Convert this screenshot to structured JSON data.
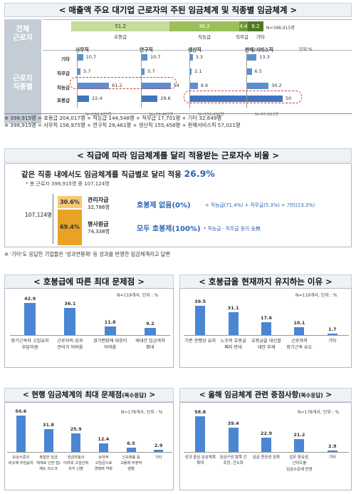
{
  "title1": "< 매출액 주요 대기업 근로자의 주된 임금체계 및 직종별 임금체계 >",
  "total_label": "전체\n근로자",
  "total_bar": {
    "segments": [
      {
        "label": "호봉급",
        "value": 51.2,
        "color": "#c6dc9a"
      },
      {
        "label": "직능급",
        "value": 36.2,
        "color": "#9bbf5a"
      },
      {
        "label": "직무급",
        "value": 4.4,
        "color": "#6f9a37"
      },
      {
        "label": "기타",
        "value": 8.2,
        "color": "#4f7a22"
      }
    ],
    "n": "N=398,915명"
  },
  "job_label": "근로자\n직종별",
  "unit_pct": "단위:%",
  "row_labels": [
    "기타",
    "직무급",
    "직능급",
    "호봉급"
  ],
  "job_chart": {
    "type": "bar",
    "groups": [
      {
        "name": "사무직",
        "values": [
          10.7,
          5.7,
          61.2,
          22.4
        ],
        "n": "N=156,975명"
      },
      {
        "name": "연구직",
        "values": [
          10.7,
          5.7,
          54.0,
          29.6
        ],
        "n": "N=29,461명"
      },
      {
        "name": "생산직",
        "values": [
          3.3,
          2.1,
          9.9,
          84.7
        ],
        "n": "N=155,458명"
      },
      {
        "name": "판매/서비스직",
        "values": [
          13.3,
          6.5,
          30.2,
          50.0
        ],
        "n": "N=57,021명"
      }
    ]
  },
  "note1a": "※ 398,915명 = 호봉급 204,017명 + 직능급 144,548명 + 직무급 17,701명 + 기타 32,649명",
  "note1b": "※ 398,915명 = 사무직 156,975명 + 연구직 29,461명 + 생산직 155,458명 + 판매서비스직 57,021명",
  "title2": "< 직급에 따라 임금체계를 달리 적용받는 근로자수 비율 >",
  "sec2": {
    "headline": "같은 직종 내에서도 임금체계를 직급별로 달리 적용",
    "headline_pct": "26.9%",
    "sub": "* 총 근로자 398,915명 중 107,124명",
    "total": "107,124명",
    "top_pct": "30.6%",
    "bottom_pct": "69.4%",
    "top_name": "관리자급",
    "top_count": "32,786명",
    "bottom_name": "평사원급",
    "bottom_count": "74,338명",
    "top_msg": "호봉제 없음(0%)",
    "top_detail": "+ 직능급(71.4%) + 직무급(5.3%) + 기타(23.3%)",
    "bottom_msg": "모두 호봉제(100%)",
    "bottom_detail": "* 직능급 · 직무급 등이 全無",
    "note": "※ '기타'도 응답한 기업들은 '성과연봉제' 등 성과를 반영한 임금체계라고 답변"
  },
  "title3": "< 호봉급에 따른 최대 문제점 >",
  "title4": "< 호봉급을 현재까지 유지하는 이유 >",
  "unit_119": "N=119개사, 단위 : %",
  "chart3": {
    "type": "bar",
    "categories": [
      "장기근속자 고임유지 부담이큼",
      "근로자의 성과 관리가 어려움",
      "경기변화에 대응이 어려움",
      "세대간 임금격차 확대"
    ],
    "values": [
      42.9,
      36.1,
      11.8,
      9.2
    ],
    "ylim": [
      0,
      50
    ]
  },
  "chart4": {
    "type": "bar",
    "categories": [
      "기존 관행상 유지",
      "노조의 호봉급 폐지 반대",
      "호봉급을 대신할 대안 부재",
      "근로자의 장기근속 유도",
      "기타"
    ],
    "values": [
      39.5,
      31.1,
      17.6,
      10.1,
      1.7
    ],
    "ylim": [
      0,
      50
    ]
  },
  "title5": "< 현행 임금체계의 최대 문제점",
  "title5_sub": "(복수응답)",
  "title6": "< 올해 임금체계 관련 중점사항",
  "title6_sub": "(복수응답)",
  "unit_178": "N=178개사, 단위 : %",
  "chart5": {
    "type": "bar",
    "categories": [
      "보상수준이 비슷해 무임승차",
      "복잡한 임금 체계로 인한 법/제도 리스크",
      "임금자동이 어려워 고임인력 유지 난항",
      "상대적 고임금으로 경쟁력 약화",
      "신규채용 등 고용에 부정적 영향",
      "기타"
    ],
    "values": [
      50.6,
      31.8,
      25.9,
      12.4,
      6.5,
      2.9
    ],
    "ylim": [
      0,
      60
    ]
  },
  "chart6": {
    "type": "bar",
    "categories": [
      "성과 중심 보상체계 확대",
      "임금구성 항목 간 조정, 간소화",
      "임금 연공성 완화",
      "업무 중요성, 난이도를 임금수준에 반영",
      "기타"
    ],
    "values": [
      58.8,
      39.4,
      22.9,
      21.2,
      2.9
    ],
    "ylim": [
      0,
      70
    ]
  }
}
